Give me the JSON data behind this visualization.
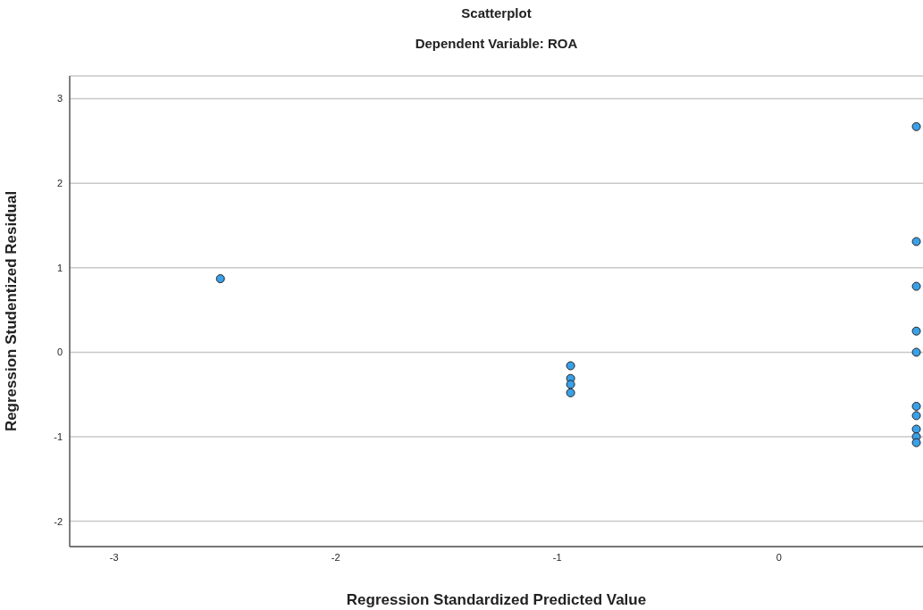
{
  "chart_data": {
    "type": "scatter",
    "title": "Scatterplot",
    "subtitle": "Dependent Variable: ROA",
    "xlabel": "Regression Standardized Predicted Value",
    "ylabel": "Regression Studentized Residual",
    "x": [
      -2.52,
      -0.94,
      -0.94,
      -0.94,
      -0.94,
      0.62,
      0.62,
      0.62,
      0.62,
      0.62,
      0.62,
      0.62,
      0.62,
      0.62,
      0.62
    ],
    "values": [
      0.87,
      -0.16,
      -0.31,
      -0.38,
      -0.48,
      2.67,
      1.31,
      0.78,
      0.25,
      0.0,
      -0.64,
      -0.75,
      -0.91,
      -1.0,
      -1.07
    ],
    "color": "#3aa0e8",
    "xlim": [
      -3.2,
      0.65
    ],
    "xticks": [
      -3,
      -2,
      -1,
      0
    ],
    "ylim": [
      -2.3,
      3.27
    ],
    "yticks": [
      -2,
      -1,
      0,
      1,
      2,
      3
    ],
    "grid": "y",
    "marker": "circle"
  }
}
